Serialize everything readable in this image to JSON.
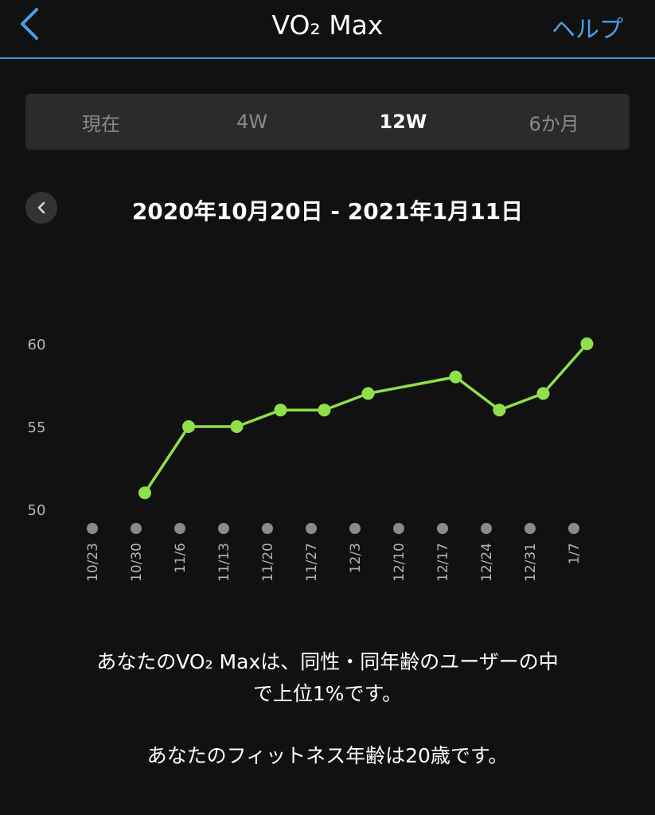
{
  "header": {
    "title": "VO₂ Max",
    "help_label": "ヘルプ"
  },
  "tabs": [
    {
      "label": "現在",
      "active": false
    },
    {
      "label": "4W",
      "active": false
    },
    {
      "label": "12W",
      "active": true
    },
    {
      "label": "6か月",
      "active": false
    }
  ],
  "date_range": "2020年10月20日 - 2021年1月11日",
  "chart_data": {
    "type": "line",
    "x": [
      "10/23",
      "10/30",
      "11/6",
      "11/13",
      "11/20",
      "11/27",
      "12/3",
      "12/10",
      "12/17",
      "12/24",
      "12/31",
      "1/7"
    ],
    "y_ticks": [
      "50",
      "55",
      "60"
    ],
    "ylim": [
      50,
      60
    ],
    "grid": false,
    "series": [
      {
        "points": [
          {
            "x": 1.2,
            "y": 51
          },
          {
            "x": 2.2,
            "y": 55
          },
          {
            "x": 3.3,
            "y": 55
          },
          {
            "x": 4.3,
            "y": 56
          },
          {
            "x": 5.3,
            "y": 56
          },
          {
            "x": 6.3,
            "y": 57
          },
          {
            "x": 8.3,
            "y": 58
          },
          {
            "x": 9.3,
            "y": 56
          },
          {
            "x": 10.3,
            "y": 57
          },
          {
            "x": 11.3,
            "y": 60
          }
        ],
        "color": "#8fe04a"
      }
    ],
    "marker_color": "#8a8a8a"
  },
  "messages": {
    "line1": "あなたのVO₂ Maxは、同性・同年齢のユーザーの中",
    "line2": "で上位1%です。",
    "fitness_age": "あなたのフィットネス年齢は20歳です。"
  },
  "colors": {
    "accent": "#4a9ee8",
    "background": "#111111",
    "line": "#8fe04a"
  }
}
